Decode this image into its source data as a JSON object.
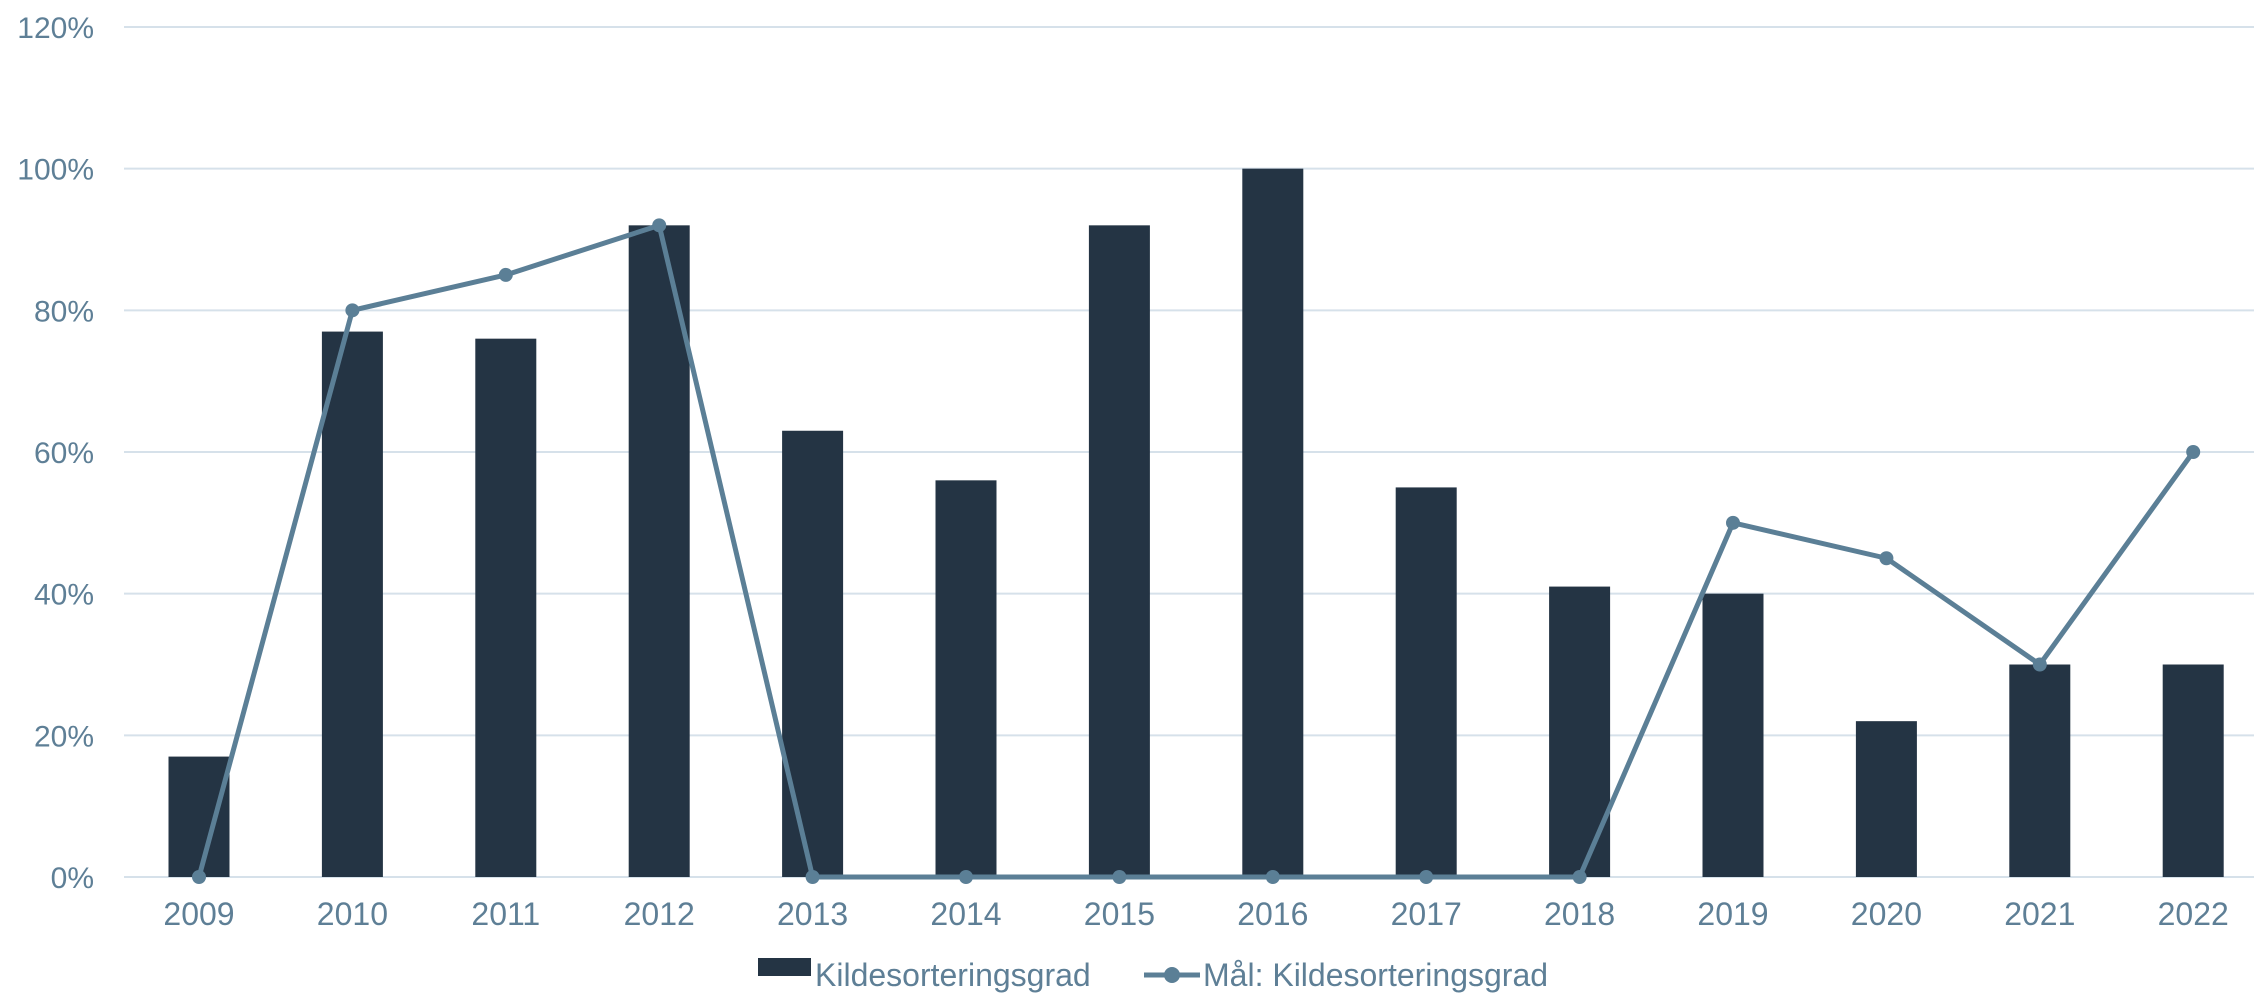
{
  "chart_data": {
    "type": "bar",
    "categories": [
      "2009",
      "2010",
      "2011",
      "2012",
      "2013",
      "2014",
      "2015",
      "2016",
      "2017",
      "2018",
      "2019",
      "2020",
      "2021",
      "2022"
    ],
    "series": [
      {
        "name": "Kildesorteringsgrad",
        "type": "bar",
        "color": "#243444",
        "values": [
          17,
          77,
          76,
          92,
          63,
          56,
          92,
          100,
          55,
          41,
          40,
          22,
          30,
          30
        ]
      },
      {
        "name": "Mål: Kildesorteringsgrad",
        "type": "line",
        "color": "#5b7f96",
        "values": [
          0,
          80,
          85,
          92,
          0,
          0,
          0,
          0,
          0,
          0,
          50,
          45,
          30,
          60
        ]
      }
    ],
    "y_ticks": [
      "0%",
      "20%",
      "40%",
      "60%",
      "80%",
      "100%",
      "120%"
    ],
    "ylim": [
      0,
      120
    ],
    "y_unit": "%",
    "grid": true,
    "legend_position": "bottom-center",
    "title": "",
    "xlabel": "",
    "ylabel": ""
  }
}
